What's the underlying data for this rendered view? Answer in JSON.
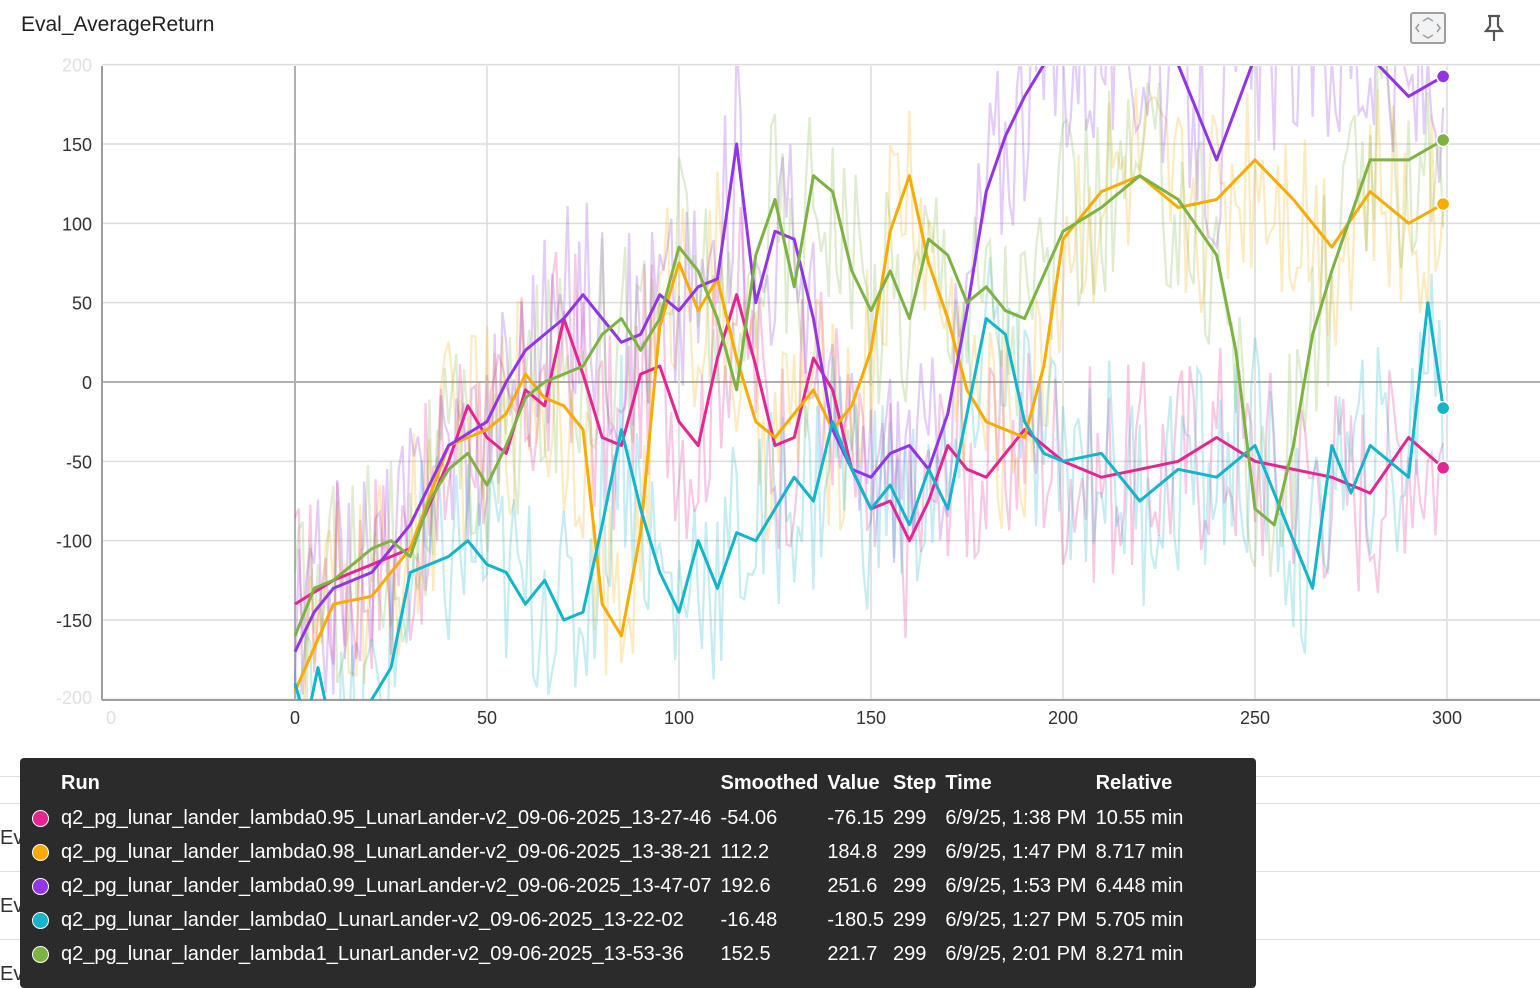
{
  "card": {
    "title": "Eval_AverageReturn",
    "fit_icon": "fit-to-domain-icon",
    "pin_icon": "pin-icon"
  },
  "background_cards": [
    {
      "title": "Eval_MaxReturn"
    },
    {
      "title": "Eval_MinReturn"
    },
    {
      "title": "Eval_StdReturn"
    }
  ],
  "colors": {
    "lambda095": "#e52592",
    "lambda098": "#f9ab00",
    "lambda099": "#9334e6",
    "lambda0": "#12b5cb",
    "lambda1": "#7cb342",
    "grid": "#d0d0d0",
    "axis": "#9e9e9e"
  },
  "tooltip": {
    "headers": {
      "run": "Run",
      "smoothed": "Smoothed",
      "value": "Value",
      "step": "Step",
      "time": "Time",
      "relative": "Relative"
    },
    "rows": [
      {
        "color": "#e52592",
        "run": "q2_pg_lunar_lander_lambda0.95_LunarLander-v2_09-06-2025_13-27-46",
        "smoothed": "-54.06",
        "value": "-76.15",
        "step": "299",
        "time": "6/9/25, 1:38 PM",
        "relative": "10.55 min"
      },
      {
        "color": "#f9ab00",
        "run": "q2_pg_lunar_lander_lambda0.98_LunarLander-v2_09-06-2025_13-38-21",
        "smoothed": "112.2",
        "value": "184.8",
        "step": "299",
        "time": "6/9/25, 1:47 PM",
        "relative": "8.717 min"
      },
      {
        "color": "#9334e6",
        "run": "q2_pg_lunar_lander_lambda0.99_LunarLander-v2_09-06-2025_13-47-07",
        "smoothed": "192.6",
        "value": "251.6",
        "step": "299",
        "time": "6/9/25, 1:53 PM",
        "relative": "6.448 min"
      },
      {
        "color": "#12b5cb",
        "run": "q2_pg_lunar_lander_lambda0_LunarLander-v2_09-06-2025_13-22-02",
        "smoothed": "-16.48",
        "value": "-180.5",
        "step": "299",
        "time": "6/9/25, 1:27 PM",
        "relative": "5.705 min"
      },
      {
        "color": "#7cb342",
        "run": "q2_pg_lunar_lander_lambda1_LunarLander-v2_09-06-2025_13-53-36",
        "smoothed": "152.5",
        "value": "221.7",
        "step": "299",
        "time": "6/9/25, 2:01 PM",
        "relative": "8.271 min"
      }
    ]
  },
  "chart_data": {
    "type": "line",
    "title": "Eval_AverageReturn",
    "xlabel": "",
    "ylabel": "",
    "xlim": [
      -50,
      320
    ],
    "ylim": [
      -200,
      200
    ],
    "x_ticks": [
      "0",
      "0",
      "50",
      "100",
      "150",
      "200",
      "250",
      "300"
    ],
    "x_tick_values": [
      -48,
      0,
      50,
      100,
      150,
      200,
      250,
      300
    ],
    "y_ticks": [
      "200",
      "150",
      "100",
      "50",
      "0",
      "-50",
      "-100",
      "-150",
      "-200"
    ],
    "y_tick_values": [
      200,
      150,
      100,
      50,
      0,
      -50,
      -100,
      -150,
      -200
    ],
    "grid": true,
    "smoothed_series": [
      {
        "key": "lambda095",
        "color": "#e52592",
        "x": [
          0,
          10,
          20,
          30,
          40,
          45,
          50,
          55,
          60,
          65,
          70,
          75,
          80,
          85,
          90,
          95,
          100,
          105,
          110,
          115,
          120,
          125,
          130,
          135,
          140,
          145,
          150,
          155,
          160,
          165,
          170,
          175,
          180,
          190,
          200,
          210,
          220,
          230,
          240,
          250,
          260,
          270,
          275,
          280,
          290,
          299
        ],
        "y": [
          -140,
          -125,
          -115,
          -105,
          -50,
          -15,
          -35,
          -45,
          -5,
          -15,
          40,
          5,
          -35,
          -40,
          5,
          10,
          -25,
          -40,
          15,
          55,
          10,
          -40,
          -35,
          15,
          -5,
          -55,
          -80,
          -75,
          -100,
          -75,
          -40,
          -55,
          -60,
          -30,
          -50,
          -60,
          -55,
          -50,
          -35,
          -50,
          -55,
          -60,
          -65,
          -70,
          -35,
          -54.06
        ]
      },
      {
        "key": "lambda098",
        "color": "#f9ab00",
        "x": [
          0,
          10,
          20,
          30,
          40,
          50,
          55,
          60,
          65,
          70,
          75,
          80,
          85,
          90,
          95,
          100,
          105,
          110,
          115,
          120,
          125,
          130,
          135,
          140,
          145,
          150,
          155,
          160,
          165,
          170,
          175,
          180,
          185,
          190,
          195,
          200,
          210,
          220,
          230,
          240,
          250,
          260,
          270,
          280,
          290,
          299
        ],
        "y": [
          -195,
          -140,
          -135,
          -105,
          -40,
          -30,
          -20,
          5,
          -10,
          -15,
          -30,
          -140,
          -160,
          -95,
          35,
          75,
          45,
          65,
          15,
          -25,
          -35,
          -20,
          -5,
          -30,
          -15,
          20,
          95,
          130,
          75,
          40,
          -5,
          -25,
          -30,
          -35,
          10,
          90,
          120,
          130,
          110,
          115,
          140,
          115,
          85,
          120,
          100,
          112.2
        ]
      },
      {
        "key": "lambda099",
        "color": "#9334e6",
        "x": [
          0,
          5,
          10,
          20,
          30,
          40,
          50,
          55,
          60,
          65,
          70,
          75,
          80,
          85,
          90,
          95,
          100,
          105,
          110,
          115,
          120,
          125,
          130,
          135,
          140,
          145,
          150,
          155,
          160,
          165,
          170,
          175,
          180,
          185,
          190,
          195,
          200,
          210,
          220,
          230,
          240,
          250,
          260,
          270,
          280,
          290,
          299
        ],
        "y": [
          -170,
          -145,
          -130,
          -120,
          -90,
          -40,
          -25,
          0,
          20,
          30,
          40,
          55,
          40,
          25,
          30,
          55,
          45,
          60,
          65,
          150,
          50,
          95,
          90,
          40,
          -30,
          -55,
          -60,
          -45,
          -40,
          -55,
          -20,
          45,
          120,
          155,
          180,
          200,
          210,
          215,
          210,
          200,
          140,
          205,
          220,
          215,
          205,
          180,
          192.6
        ]
      },
      {
        "key": "lambda0",
        "color": "#12b5cb",
        "x": [
          0,
          3,
          6,
          10,
          15,
          20,
          25,
          30,
          40,
          45,
          50,
          55,
          60,
          65,
          70,
          75,
          80,
          85,
          90,
          95,
          100,
          105,
          110,
          115,
          120,
          125,
          130,
          135,
          140,
          145,
          150,
          155,
          160,
          165,
          170,
          175,
          180,
          185,
          190,
          195,
          200,
          210,
          220,
          230,
          240,
          250,
          260,
          265,
          270,
          275,
          280,
          285,
          290,
          295,
          299
        ],
        "y": [
          -190,
          -215,
          -180,
          -225,
          -230,
          -200,
          -180,
          -120,
          -110,
          -100,
          -115,
          -120,
          -140,
          -125,
          -150,
          -145,
          -90,
          -30,
          -80,
          -120,
          -145,
          -100,
          -130,
          -95,
          -100,
          -80,
          -60,
          -75,
          -25,
          -55,
          -80,
          -65,
          -90,
          -55,
          -80,
          -20,
          40,
          30,
          -25,
          -45,
          -50,
          -45,
          -75,
          -55,
          -60,
          -40,
          -100,
          -130,
          -40,
          -70,
          -40,
          -50,
          -60,
          50,
          -16.48
        ]
      },
      {
        "key": "lambda1",
        "color": "#7cb342",
        "x": [
          0,
          5,
          10,
          15,
          20,
          25,
          30,
          35,
          40,
          45,
          50,
          55,
          60,
          65,
          70,
          75,
          80,
          85,
          90,
          95,
          100,
          105,
          110,
          115,
          120,
          125,
          130,
          135,
          140,
          145,
          150,
          155,
          160,
          165,
          170,
          175,
          180,
          185,
          190,
          200,
          210,
          220,
          230,
          240,
          245,
          250,
          255,
          260,
          265,
          270,
          280,
          290,
          299
        ],
        "y": [
          -160,
          -130,
          -125,
          -115,
          -105,
          -100,
          -110,
          -75,
          -55,
          -45,
          -65,
          -40,
          -10,
          0,
          5,
          10,
          30,
          40,
          20,
          40,
          85,
          70,
          40,
          -5,
          80,
          115,
          60,
          130,
          120,
          70,
          45,
          70,
          40,
          90,
          80,
          50,
          60,
          45,
          40,
          95,
          110,
          130,
          115,
          80,
          20,
          -80,
          -90,
          -40,
          30,
          70,
          140,
          140,
          152.5
        ]
      }
    ]
  }
}
